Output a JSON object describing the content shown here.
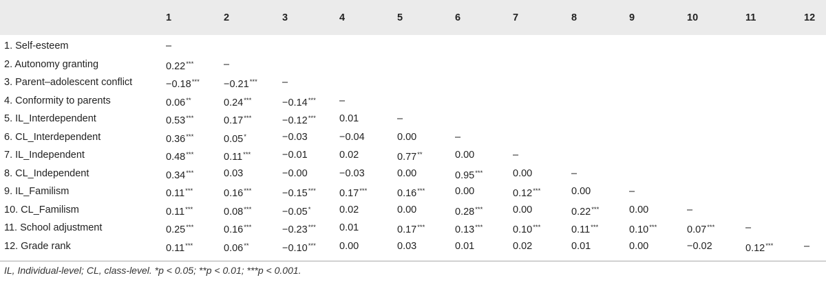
{
  "columns": [
    "1",
    "2",
    "3",
    "4",
    "5",
    "6",
    "7",
    "8",
    "9",
    "10",
    "11",
    "12"
  ],
  "rows": [
    {
      "label": "1. Self-esteem",
      "cells": [
        [
          "–",
          ""
        ]
      ]
    },
    {
      "label": "2. Autonomy granting",
      "cells": [
        [
          "0.22",
          "***"
        ],
        [
          "–",
          ""
        ]
      ]
    },
    {
      "label": "3. Parent–adolescent conflict",
      "cells": [
        [
          "−0.18",
          "***"
        ],
        [
          "−0.21",
          "***"
        ],
        [
          "–",
          ""
        ]
      ]
    },
    {
      "label": "4. Conformity to parents",
      "cells": [
        [
          "0.06",
          "**"
        ],
        [
          "0.24",
          "***"
        ],
        [
          "−0.14",
          "***"
        ],
        [
          "–",
          ""
        ]
      ]
    },
    {
      "label": "5. IL_Interdependent",
      "cells": [
        [
          "0.53",
          "***"
        ],
        [
          "0.17",
          "***"
        ],
        [
          "−0.12",
          "***"
        ],
        [
          "0.01",
          ""
        ],
        [
          "–",
          ""
        ]
      ]
    },
    {
      "label": "6. CL_Interdependent",
      "cells": [
        [
          "0.36",
          "***"
        ],
        [
          "0.05",
          "*"
        ],
        [
          "−0.03",
          ""
        ],
        [
          "−0.04",
          ""
        ],
        [
          "0.00",
          ""
        ],
        [
          "–",
          ""
        ]
      ]
    },
    {
      "label": "7. IL_Independent",
      "cells": [
        [
          "0.48",
          "***"
        ],
        [
          "0.11",
          "***"
        ],
        [
          "−0.01",
          ""
        ],
        [
          "0.02",
          ""
        ],
        [
          "0.77",
          "**"
        ],
        [
          "0.00",
          ""
        ],
        [
          "–",
          ""
        ]
      ]
    },
    {
      "label": "8. CL_Independent",
      "cells": [
        [
          "0.34",
          "***"
        ],
        [
          "0.03",
          ""
        ],
        [
          "−0.00",
          ""
        ],
        [
          "−0.03",
          ""
        ],
        [
          "0.00",
          ""
        ],
        [
          "0.95",
          "***"
        ],
        [
          "0.00",
          ""
        ],
        [
          "–",
          ""
        ]
      ]
    },
    {
      "label": "9. IL_Familism",
      "cells": [
        [
          "0.11",
          "***"
        ],
        [
          "0.16",
          "***"
        ],
        [
          "−0.15",
          "***"
        ],
        [
          "0.17",
          "***"
        ],
        [
          "0.16",
          "***"
        ],
        [
          "0.00",
          ""
        ],
        [
          "0.12",
          "***"
        ],
        [
          "0.00",
          ""
        ],
        [
          "–",
          ""
        ]
      ]
    },
    {
      "label": "10. CL_Familism",
      "cells": [
        [
          "0.11",
          "***"
        ],
        [
          "0.08",
          "***"
        ],
        [
          "−0.05",
          "*"
        ],
        [
          "0.02",
          ""
        ],
        [
          "0.00",
          ""
        ],
        [
          "0.28",
          "***"
        ],
        [
          "0.00",
          ""
        ],
        [
          "0.22",
          "***"
        ],
        [
          "0.00",
          ""
        ],
        [
          "–",
          ""
        ]
      ]
    },
    {
      "label": "11. School adjustment",
      "cells": [
        [
          "0.25",
          "***"
        ],
        [
          "0.16",
          "***"
        ],
        [
          "−0.23",
          "***"
        ],
        [
          "0.01",
          ""
        ],
        [
          "0.17",
          "***"
        ],
        [
          "0.13",
          "***"
        ],
        [
          "0.10",
          "***"
        ],
        [
          "0.11",
          "***"
        ],
        [
          "0.10",
          "***"
        ],
        [
          "0.07",
          "***"
        ],
        [
          "–",
          ""
        ]
      ]
    },
    {
      "label": "12. Grade rank",
      "cells": [
        [
          "0.11",
          "***"
        ],
        [
          "0.06",
          "**"
        ],
        [
          "−0.10",
          "***"
        ],
        [
          "0.00",
          ""
        ],
        [
          "0.03",
          ""
        ],
        [
          "0.01",
          ""
        ],
        [
          "0.02",
          ""
        ],
        [
          "0.01",
          ""
        ],
        [
          "0.00",
          ""
        ],
        [
          "−0.02",
          ""
        ],
        [
          "0.12",
          "***"
        ],
        [
          "–",
          ""
        ]
      ]
    }
  ],
  "footnote": "IL, Individual-level; CL, class-level. *p < 0.05; **p < 0.01; ***p < 0.001."
}
